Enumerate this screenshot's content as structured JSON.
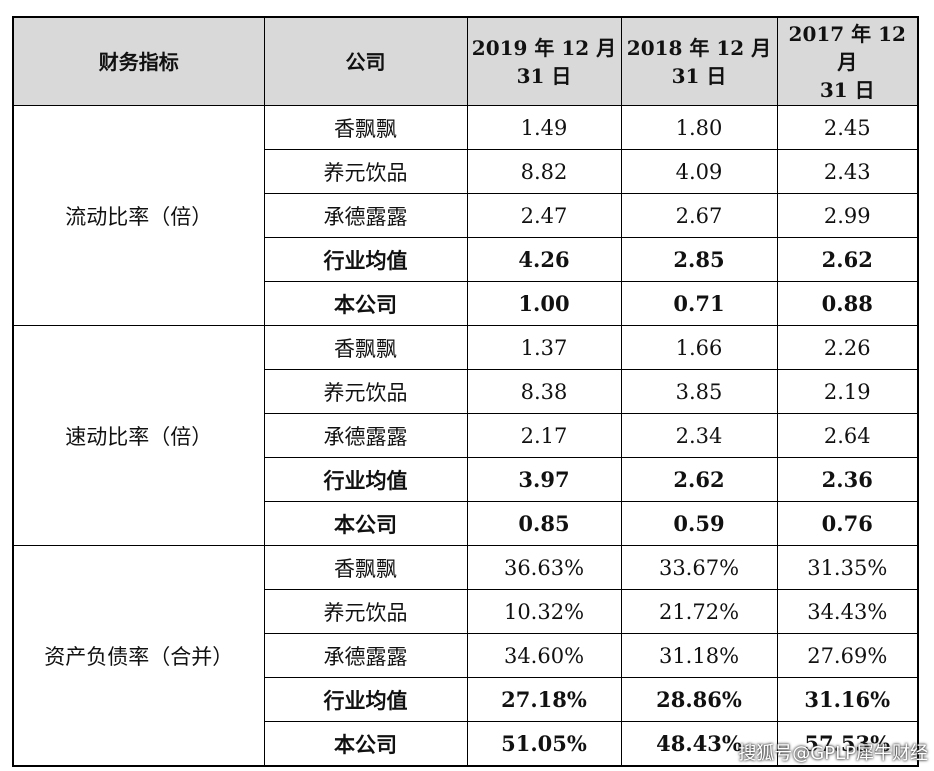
{
  "header": {
    "col1": "财务指标",
    "col2": "公司",
    "col3_line1": "2019 年 12 月",
    "col3_line2": "31 日",
    "col4_line1": "2018 年 12 月",
    "col4_line2": "31 日",
    "col5_line1": "2017 年 12 月",
    "col5_line2": "31 日"
  },
  "groups": [
    {
      "metric": "流动比率（倍）",
      "rows": [
        {
          "company": "香飘飘",
          "v2019": "1.49",
          "v2018": "1.80",
          "v2017": "2.45"
        },
        {
          "company": "养元饮品",
          "v2019": "8.82",
          "v2018": "4.09",
          "v2017": "2.43"
        },
        {
          "company": "承德露露",
          "v2019": "2.47",
          "v2018": "2.67",
          "v2017": "2.99"
        },
        {
          "company": "行业均值",
          "v2019": "4.26",
          "v2018": "2.85",
          "v2017": "2.62"
        },
        {
          "company": "本公司",
          "v2019": "1.00",
          "v2018": "0.71",
          "v2017": "0.88"
        }
      ]
    },
    {
      "metric": "速动比率（倍）",
      "rows": [
        {
          "company": "香飘飘",
          "v2019": "1.37",
          "v2018": "1.66",
          "v2017": "2.26"
        },
        {
          "company": "养元饮品",
          "v2019": "8.38",
          "v2018": "3.85",
          "v2017": "2.19"
        },
        {
          "company": "承德露露",
          "v2019": "2.17",
          "v2018": "2.34",
          "v2017": "2.64"
        },
        {
          "company": "行业均值",
          "v2019": "3.97",
          "v2018": "2.62",
          "v2017": "2.36"
        },
        {
          "company": "本公司",
          "v2019": "0.85",
          "v2018": "0.59",
          "v2017": "0.76"
        }
      ]
    },
    {
      "metric": "资产负债率（合并）",
      "rows": [
        {
          "company": "香飘飘",
          "v2019": "36.63%",
          "v2018": "33.67%",
          "v2017": "31.35%"
        },
        {
          "company": "养元饮品",
          "v2019": "10.32%",
          "v2018": "21.72%",
          "v2017": "34.43%"
        },
        {
          "company": "承德露露",
          "v2019": "34.60%",
          "v2018": "31.18%",
          "v2017": "27.69%"
        },
        {
          "company": "行业均值",
          "v2019": "27.18%",
          "v2018": "28.86%",
          "v2017": "31.16%"
        },
        {
          "company": "本公司",
          "v2019": "51.05%",
          "v2018": "48.43%",
          "v2017": "57.53%"
        }
      ]
    }
  ],
  "watermark": "搜狐号@GPLP犀牛财经"
}
